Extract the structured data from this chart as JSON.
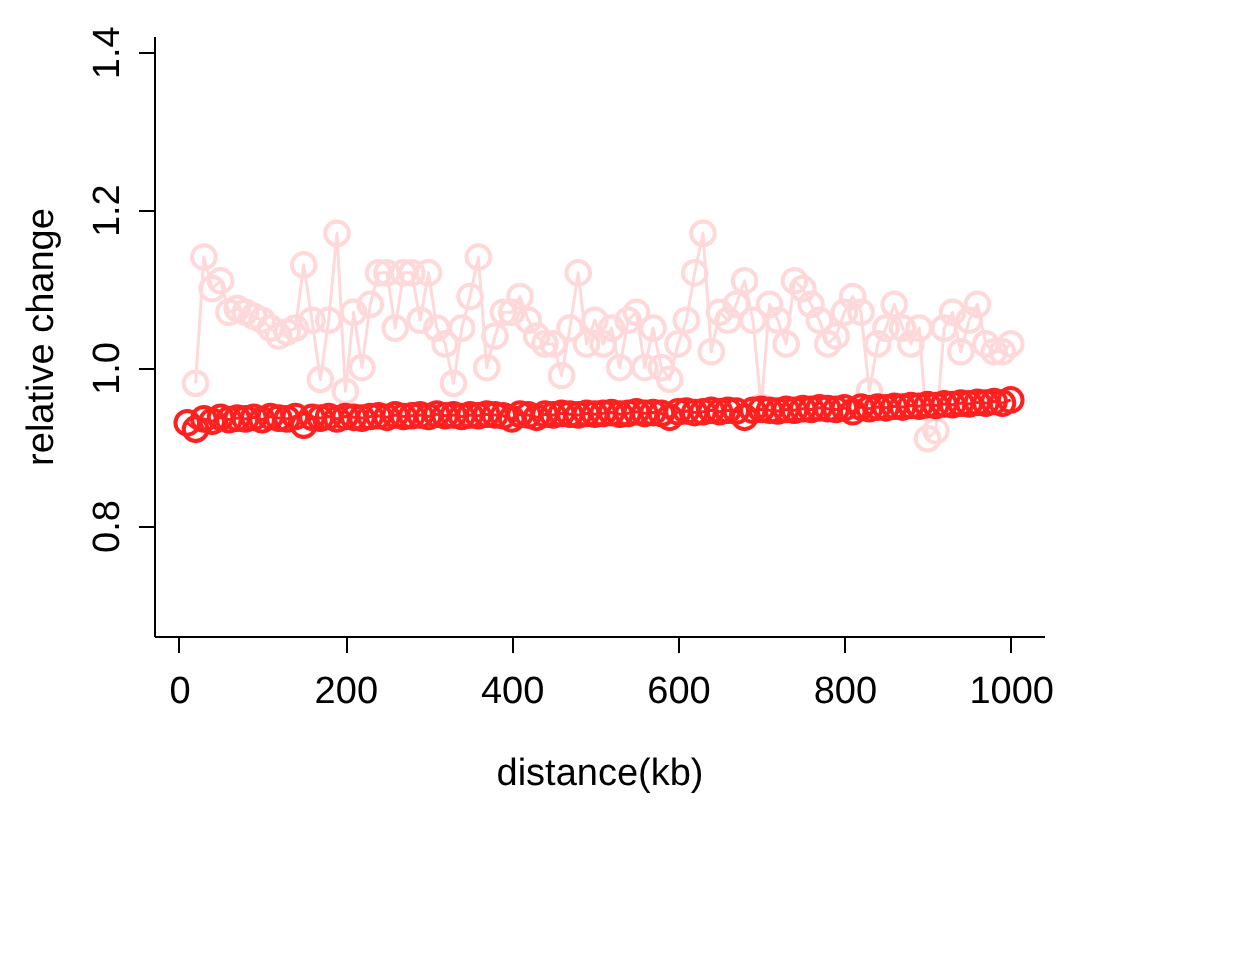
{
  "chart_data": {
    "type": "line",
    "xlabel": "distance(kb)",
    "ylabel": "relative change",
    "xlim": [
      -30,
      1040
    ],
    "ylim": [
      0.66,
      1.42
    ],
    "xticks": [
      0,
      200,
      400,
      600,
      800,
      {
        "value": 1000,
        "label": "1000"
      }
    ],
    "yticks": [
      0.8,
      {
        "value": 1.0,
        "label": "1.0"
      },
      1.2,
      1.4
    ],
    "grid": false,
    "legend": false,
    "marker": "circle",
    "line_style": "solid",
    "series": [
      {
        "color": "#ffd9d9",
        "x": [
          20,
          30,
          40,
          50,
          60,
          70,
          80,
          90,
          100,
          110,
          120,
          130,
          140,
          150,
          160,
          170,
          180,
          190,
          200,
          210,
          220,
          230,
          240,
          250,
          260,
          270,
          280,
          290,
          300,
          310,
          320,
          330,
          340,
          350,
          360,
          370,
          380,
          390,
          400,
          410,
          420,
          430,
          440,
          450,
          460,
          470,
          480,
          490,
          500,
          510,
          520,
          530,
          540,
          550,
          560,
          570,
          580,
          590,
          600,
          610,
          620,
          630,
          640,
          650,
          660,
          670,
          680,
          690,
          700,
          710,
          720,
          730,
          740,
          750,
          760,
          770,
          780,
          790,
          800,
          810,
          820,
          830,
          840,
          850,
          860,
          870,
          880,
          890,
          900,
          910,
          920,
          930,
          940,
          950,
          960,
          970,
          980,
          990,
          1000
        ],
        "values": [
          0.98,
          1.14,
          1.1,
          1.11,
          1.07,
          1.075,
          1.07,
          1.065,
          1.06,
          1.05,
          1.04,
          1.045,
          1.05,
          1.13,
          1.06,
          0.985,
          1.06,
          1.17,
          0.97,
          1.07,
          1.0,
          1.08,
          1.12,
          1.12,
          1.05,
          1.12,
          1.12,
          1.06,
          1.12,
          1.05,
          1.03,
          0.98,
          1.05,
          1.09,
          1.14,
          1.0,
          1.04,
          1.07,
          1.07,
          1.09,
          1.06,
          1.04,
          1.03,
          1.03,
          0.99,
          1.05,
          1.12,
          1.03,
          1.06,
          1.03,
          1.05,
          1.0,
          1.06,
          1.07,
          1.0,
          1.05,
          1.0,
          0.985,
          1.03,
          1.06,
          1.12,
          1.17,
          1.02,
          1.07,
          1.06,
          1.08,
          1.11,
          1.06,
          0.95,
          1.08,
          1.06,
          1.03,
          1.11,
          1.1,
          1.08,
          1.06,
          1.03,
          1.04,
          1.07,
          1.09,
          1.07,
          0.97,
          1.03,
          1.05,
          1.08,
          1.05,
          1.03,
          1.05,
          0.91,
          0.92,
          1.05,
          1.07,
          1.02,
          1.06,
          1.08,
          1.03,
          1.02,
          1.02,
          1.03
        ]
      },
      {
        "color": "#ff2020",
        "x": [
          10,
          20,
          30,
          40,
          50,
          60,
          70,
          80,
          90,
          100,
          110,
          120,
          130,
          140,
          150,
          160,
          170,
          180,
          190,
          200,
          210,
          220,
          230,
          240,
          250,
          260,
          270,
          280,
          290,
          300,
          310,
          320,
          330,
          340,
          350,
          360,
          370,
          380,
          390,
          400,
          410,
          420,
          430,
          440,
          450,
          460,
          470,
          480,
          490,
          500,
          510,
          520,
          530,
          540,
          550,
          560,
          570,
          580,
          590,
          600,
          610,
          620,
          630,
          640,
          650,
          660,
          670,
          680,
          690,
          700,
          710,
          720,
          730,
          740,
          750,
          760,
          770,
          780,
          790,
          800,
          810,
          820,
          830,
          840,
          850,
          860,
          870,
          880,
          890,
          900,
          910,
          920,
          930,
          940,
          950,
          960,
          970,
          980,
          990,
          1000
        ],
        "values": [
          0.93,
          0.922,
          0.935,
          0.932,
          0.937,
          0.934,
          0.936,
          0.935,
          0.937,
          0.934,
          0.938,
          0.936,
          0.935,
          0.938,
          0.927,
          0.937,
          0.936,
          0.938,
          0.935,
          0.938,
          0.937,
          0.936,
          0.938,
          0.939,
          0.937,
          0.94,
          0.938,
          0.939,
          0.94,
          0.938,
          0.941,
          0.939,
          0.94,
          0.938,
          0.94,
          0.939,
          0.941,
          0.94,
          0.939,
          0.935,
          0.941,
          0.94,
          0.937,
          0.941,
          0.94,
          0.942,
          0.941,
          0.94,
          0.942,
          0.941,
          0.942,
          0.943,
          0.941,
          0.942,
          0.944,
          0.942,
          0.943,
          0.942,
          0.937,
          0.944,
          0.945,
          0.943,
          0.944,
          0.946,
          0.944,
          0.946,
          0.945,
          0.937,
          0.946,
          0.947,
          0.946,
          0.945,
          0.947,
          0.946,
          0.948,
          0.947,
          0.949,
          0.948,
          0.947,
          0.949,
          0.944,
          0.95,
          0.948,
          0.95,
          0.949,
          0.951,
          0.95,
          0.952,
          0.951,
          0.953,
          0.952,
          0.954,
          0.953,
          0.955,
          0.954,
          0.956,
          0.955,
          0.957,
          0.955,
          0.959
        ]
      }
    ]
  }
}
